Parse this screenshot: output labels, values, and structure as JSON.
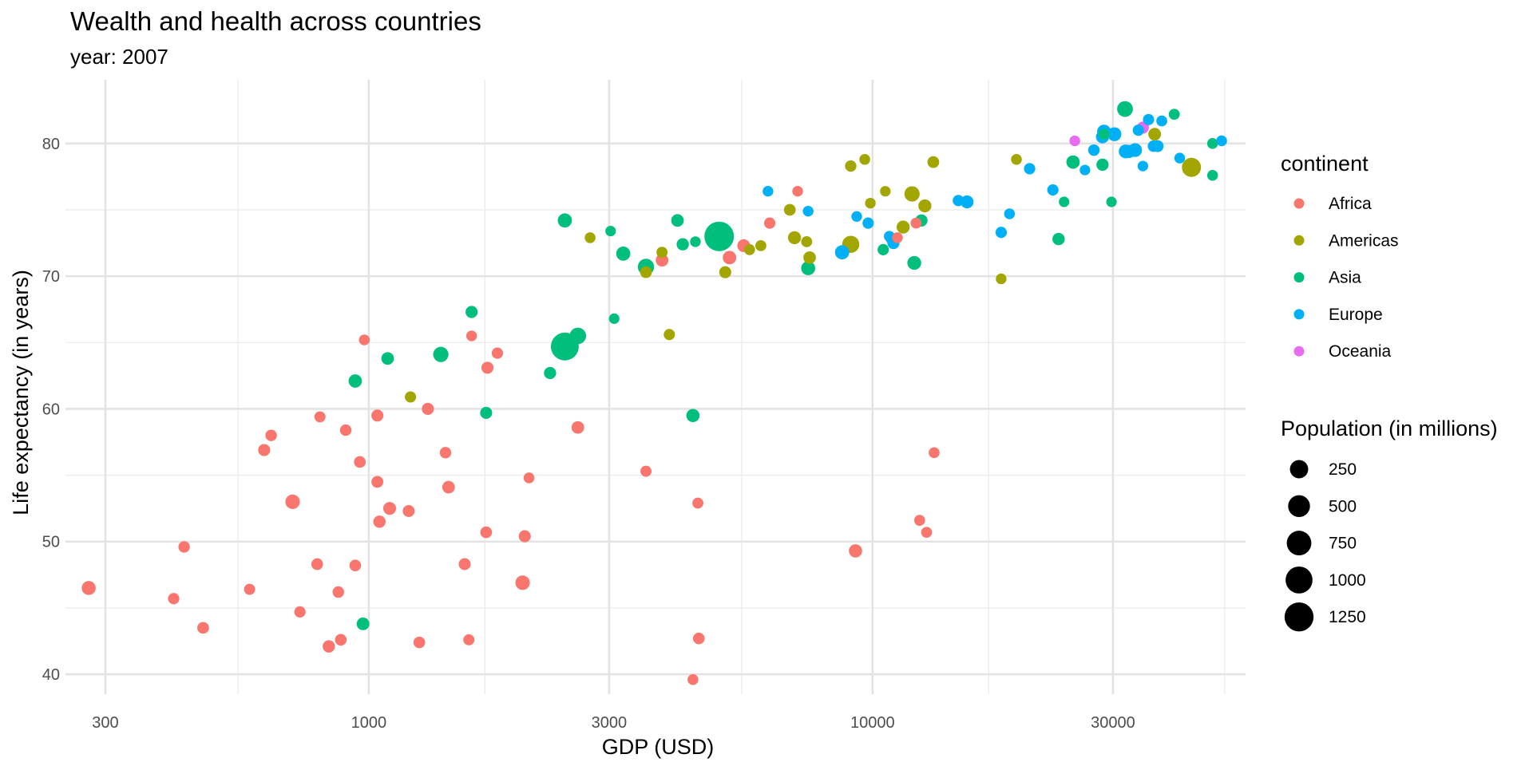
{
  "chart_data": {
    "type": "scatter",
    "title": "Wealth and health across countries",
    "subtitle": "year: 2007",
    "xlabel": "GDP (USD)",
    "ylabel": "Life expectancy (in years)",
    "x_scale": "log10",
    "xlim": [
      250,
      55000
    ],
    "ylim": [
      38.5,
      84.8
    ],
    "x_ticks": [
      300,
      1000,
      3000,
      10000,
      30000
    ],
    "x_tick_labels": [
      "300",
      "1000",
      "3000",
      "10000",
      "30000"
    ],
    "x_minor_ticks": [
      550,
      1700,
      5500,
      17000,
      50000
    ],
    "y_ticks": [
      40,
      50,
      60,
      70,
      80
    ],
    "y_tick_labels": [
      "40",
      "50",
      "60",
      "70",
      "80"
    ],
    "y_minor_ticks": [
      45,
      55,
      65,
      75
    ],
    "grid": true,
    "color_legend": {
      "title": "continent",
      "entries": [
        {
          "name": "Africa",
          "color": "#F8766D"
        },
        {
          "name": "Americas",
          "color": "#A3A500"
        },
        {
          "name": "Asia",
          "color": "#00BF7D"
        },
        {
          "name": "Europe",
          "color": "#00B0F6"
        },
        {
          "name": "Oceania",
          "color": "#E76BF3"
        }
      ]
    },
    "size_legend": {
      "title": "Population (in millions)",
      "entries": [
        {
          "label": "250",
          "value": 250
        },
        {
          "label": "500",
          "value": 500
        },
        {
          "label": "750",
          "value": 750
        },
        {
          "label": "1000",
          "value": 1000
        },
        {
          "label": "1250",
          "value": 1250
        }
      ]
    },
    "legend_position": "right",
    "series": [
      {
        "name": "Africa",
        "color": "#F8766D",
        "points": [
          {
            "x": 278,
            "y": 46.5,
            "pop": 65
          },
          {
            "x": 410,
            "y": 45.7,
            "pop": 10
          },
          {
            "x": 430,
            "y": 49.6,
            "pop": 12
          },
          {
            "x": 469,
            "y": 43.5,
            "pop": 15
          },
          {
            "x": 580,
            "y": 46.4,
            "pop": 8
          },
          {
            "x": 620,
            "y": 56.9,
            "pop": 20
          },
          {
            "x": 640,
            "y": 58.0,
            "pop": 12
          },
          {
            "x": 706,
            "y": 53.0,
            "pop": 80
          },
          {
            "x": 730,
            "y": 44.7,
            "pop": 10
          },
          {
            "x": 790,
            "y": 48.3,
            "pop": 15
          },
          {
            "x": 800,
            "y": 59.4,
            "pop": 8
          },
          {
            "x": 833,
            "y": 42.1,
            "pop": 25
          },
          {
            "x": 870,
            "y": 46.2,
            "pop": 13
          },
          {
            "x": 880,
            "y": 42.6,
            "pop": 14
          },
          {
            "x": 900,
            "y": 58.4,
            "pop": 12
          },
          {
            "x": 940,
            "y": 48.2,
            "pop": 14
          },
          {
            "x": 960,
            "y": 56.0,
            "pop": 15
          },
          {
            "x": 980,
            "y": 65.2,
            "pop": 5
          },
          {
            "x": 1040,
            "y": 59.5,
            "pop": 20
          },
          {
            "x": 1040,
            "y": 54.5,
            "pop": 18
          },
          {
            "x": 1050,
            "y": 51.5,
            "pop": 25
          },
          {
            "x": 1100,
            "y": 52.5,
            "pop": 35
          },
          {
            "x": 1200,
            "y": 52.3,
            "pop": 18
          },
          {
            "x": 1260,
            "y": 42.4,
            "pop": 14
          },
          {
            "x": 1310,
            "y": 60.0,
            "pop": 20
          },
          {
            "x": 1420,
            "y": 56.7,
            "pop": 12
          },
          {
            "x": 1440,
            "y": 54.1,
            "pop": 30
          },
          {
            "x": 1550,
            "y": 48.3,
            "pop": 18
          },
          {
            "x": 1580,
            "y": 42.6,
            "pop": 8
          },
          {
            "x": 1600,
            "y": 65.5,
            "pop": 4
          },
          {
            "x": 1710,
            "y": 50.7,
            "pop": 15
          },
          {
            "x": 1720,
            "y": 63.1,
            "pop": 20
          },
          {
            "x": 1800,
            "y": 64.2,
            "pop": 10
          },
          {
            "x": 2020,
            "y": 46.9,
            "pop": 80
          },
          {
            "x": 2040,
            "y": 50.4,
            "pop": 20
          },
          {
            "x": 2080,
            "y": 54.8,
            "pop": 5
          },
          {
            "x": 2600,
            "y": 58.6,
            "pop": 30
          },
          {
            "x": 3550,
            "y": 55.3,
            "pop": 8
          },
          {
            "x": 3820,
            "y": 71.2,
            "pop": 32
          },
          {
            "x": 4400,
            "y": 39.6,
            "pop": 5
          },
          {
            "x": 4500,
            "y": 52.9,
            "pop": 7
          },
          {
            "x": 4520,
            "y": 42.7,
            "pop": 14
          },
          {
            "x": 5200,
            "y": 71.4,
            "pop": 50
          },
          {
            "x": 5550,
            "y": 72.3,
            "pop": 35
          },
          {
            "x": 6250,
            "y": 74.0,
            "pop": 10
          },
          {
            "x": 7100,
            "y": 76.4,
            "pop": 4
          },
          {
            "x": 9250,
            "y": 49.3,
            "pop": 45
          },
          {
            "x": 11200,
            "y": 72.9,
            "pop": 5
          },
          {
            "x": 12200,
            "y": 74.0,
            "pop": 6
          },
          {
            "x": 12400,
            "y": 51.6,
            "pop": 6
          },
          {
            "x": 12800,
            "y": 50.7,
            "pop": 6
          },
          {
            "x": 13250,
            "y": 56.7,
            "pop": 6
          }
        ]
      },
      {
        "name": "Americas",
        "color": "#A3A500",
        "points": [
          {
            "x": 1210,
            "y": 60.9,
            "pop": 9
          },
          {
            "x": 2750,
            "y": 72.9,
            "pop": 5
          },
          {
            "x": 3550,
            "y": 70.3,
            "pop": 15
          },
          {
            "x": 3820,
            "y": 71.8,
            "pop": 8
          },
          {
            "x": 3950,
            "y": 65.6,
            "pop": 9
          },
          {
            "x": 5100,
            "y": 70.3,
            "pop": 20
          },
          {
            "x": 5700,
            "y": 72.0,
            "pop": 6
          },
          {
            "x": 6000,
            "y": 72.3,
            "pop": 7
          },
          {
            "x": 6850,
            "y": 75.0,
            "pop": 15
          },
          {
            "x": 7000,
            "y": 72.9,
            "pop": 40
          },
          {
            "x": 7400,
            "y": 72.6,
            "pop": 7
          },
          {
            "x": 7500,
            "y": 71.4,
            "pop": 29
          },
          {
            "x": 9050,
            "y": 72.4,
            "pop": 190
          },
          {
            "x": 9050,
            "y": 78.3,
            "pop": 11
          },
          {
            "x": 9650,
            "y": 78.8,
            "pop": 5
          },
          {
            "x": 9900,
            "y": 75.5,
            "pop": 4
          },
          {
            "x": 10600,
            "y": 76.4,
            "pop": 3
          },
          {
            "x": 11500,
            "y": 73.7,
            "pop": 40
          },
          {
            "x": 11977,
            "y": 76.2,
            "pop": 108
          },
          {
            "x": 12700,
            "y": 75.3,
            "pop": 40
          },
          {
            "x": 13200,
            "y": 78.6,
            "pop": 16
          },
          {
            "x": 18000,
            "y": 69.8,
            "pop": 4
          },
          {
            "x": 19300,
            "y": 78.8,
            "pop": 5
          },
          {
            "x": 36300,
            "y": 80.7,
            "pop": 33
          },
          {
            "x": 42950,
            "y": 78.2,
            "pop": 301
          }
        ]
      },
      {
        "name": "Asia",
        "color": "#00BF7D",
        "points": [
          {
            "x": 974,
            "y": 43.8,
            "pop": 32
          },
          {
            "x": 940,
            "y": 62.1,
            "pop": 47
          },
          {
            "x": 1090,
            "y": 63.8,
            "pop": 30
          },
          {
            "x": 1390,
            "y": 64.1,
            "pop": 108
          },
          {
            "x": 1600,
            "y": 67.3,
            "pop": 22
          },
          {
            "x": 1710,
            "y": 59.7,
            "pop": 20
          },
          {
            "x": 2450,
            "y": 64.7,
            "pop": 1110
          },
          {
            "x": 2600,
            "y": 65.5,
            "pop": 160
          },
          {
            "x": 2290,
            "y": 62.7,
            "pop": 22
          },
          {
            "x": 2450,
            "y": 74.2,
            "pop": 70
          },
          {
            "x": 3020,
            "y": 73.4,
            "pop": 3
          },
          {
            "x": 3070,
            "y": 66.8,
            "pop": 3
          },
          {
            "x": 3200,
            "y": 71.7,
            "pop": 70
          },
          {
            "x": 3550,
            "y": 70.7,
            "pop": 150
          },
          {
            "x": 4200,
            "y": 72.4,
            "pop": 24
          },
          {
            "x": 4450,
            "y": 72.6,
            "pop": 4
          },
          {
            "x": 4400,
            "y": 59.5,
            "pop": 45
          },
          {
            "x": 4100,
            "y": 74.2,
            "pop": 30
          },
          {
            "x": 4960,
            "y": 73.0,
            "pop": 1319
          },
          {
            "x": 7450,
            "y": 70.6,
            "pop": 65
          },
          {
            "x": 10500,
            "y": 72.0,
            "pop": 10
          },
          {
            "x": 12100,
            "y": 71.0,
            "pop": 60
          },
          {
            "x": 12500,
            "y": 74.2,
            "pop": 24
          },
          {
            "x": 23400,
            "y": 72.8,
            "pop": 25
          },
          {
            "x": 24000,
            "y": 75.6,
            "pop": 3
          },
          {
            "x": 25000,
            "y": 78.6,
            "pop": 48
          },
          {
            "x": 28800,
            "y": 80.7,
            "pop": 6
          },
          {
            "x": 28600,
            "y": 78.4,
            "pop": 23
          },
          {
            "x": 29800,
            "y": 75.6,
            "pop": 3
          },
          {
            "x": 31700,
            "y": 82.6,
            "pop": 127
          },
          {
            "x": 39700,
            "y": 82.2,
            "pop": 7
          },
          {
            "x": 47300,
            "y": 80.0,
            "pop": 5
          },
          {
            "x": 47300,
            "y": 77.6,
            "pop": 5
          }
        ]
      },
      {
        "name": "Europe",
        "color": "#00B0F6",
        "points": [
          {
            "x": 6200,
            "y": 76.4,
            "pop": 4
          },
          {
            "x": 7450,
            "y": 74.9,
            "pop": 4
          },
          {
            "x": 8700,
            "y": 71.8,
            "pop": 71
          },
          {
            "x": 9300,
            "y": 74.5,
            "pop": 4
          },
          {
            "x": 9800,
            "y": 74.0,
            "pop": 10
          },
          {
            "x": 10800,
            "y": 73.0,
            "pop": 7
          },
          {
            "x": 11000,
            "y": 72.5,
            "pop": 22
          },
          {
            "x": 10900,
            "y": 72.8,
            "pop": 7
          },
          {
            "x": 14800,
            "y": 75.7,
            "pop": 10
          },
          {
            "x": 15400,
            "y": 75.6,
            "pop": 38
          },
          {
            "x": 18000,
            "y": 73.3,
            "pop": 10
          },
          {
            "x": 18700,
            "y": 74.7,
            "pop": 5
          },
          {
            "x": 20500,
            "y": 78.1,
            "pop": 10
          },
          {
            "x": 22800,
            "y": 76.5,
            "pop": 10
          },
          {
            "x": 26400,
            "y": 78.0,
            "pop": 3
          },
          {
            "x": 27500,
            "y": 79.5,
            "pop": 12
          },
          {
            "x": 28600,
            "y": 80.5,
            "pop": 40
          },
          {
            "x": 28800,
            "y": 80.9,
            "pop": 58
          },
          {
            "x": 30200,
            "y": 80.7,
            "pop": 62
          },
          {
            "x": 31800,
            "y": 79.4,
            "pop": 60
          },
          {
            "x": 32300,
            "y": 79.4,
            "pop": 40
          },
          {
            "x": 33200,
            "y": 79.5,
            "pop": 58
          },
          {
            "x": 33700,
            "y": 81.0,
            "pop": 10
          },
          {
            "x": 34400,
            "y": 78.3,
            "pop": 3
          },
          {
            "x": 35300,
            "y": 81.8,
            "pop": 9
          },
          {
            "x": 36100,
            "y": 79.8,
            "pop": 12
          },
          {
            "x": 36800,
            "y": 79.8,
            "pop": 17
          },
          {
            "x": 37500,
            "y": 81.7,
            "pop": 6
          },
          {
            "x": 40700,
            "y": 78.9,
            "pop": 4
          },
          {
            "x": 49300,
            "y": 80.2,
            "pop": 5
          }
        ]
      },
      {
        "name": "Oceania",
        "color": "#E76BF3",
        "points": [
          {
            "x": 25200,
            "y": 80.2,
            "pop": 4
          },
          {
            "x": 34400,
            "y": 81.2,
            "pop": 20
          }
        ]
      }
    ]
  }
}
